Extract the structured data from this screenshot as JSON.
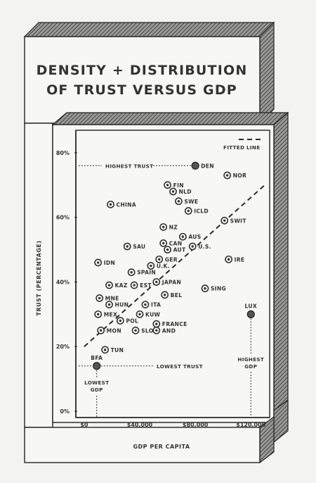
{
  "chart_data": {
    "type": "scatter",
    "title": "DENSITY + DISTRIBUTION\nOF TRUST VERSUS GDP",
    "xlabel": "GDP PER CAPITA",
    "ylabel": "TRUST (PERCENTAGE)",
    "xlim": [
      -4000,
      132000
    ],
    "ylim": [
      0,
      85
    ],
    "x_ticks": [
      0,
      40000,
      80000,
      120000
    ],
    "x_tick_labels": [
      "$0",
      "$40,000",
      "$80,000",
      "$120,000"
    ],
    "y_ticks": [
      0,
      20,
      40,
      60,
      80
    ],
    "y_tick_labels": [
      "0%",
      "20%",
      "40%",
      "60%",
      "80%"
    ],
    "grid": false,
    "legend": {
      "label": "FITTED LINE",
      "position": "top-right"
    },
    "fitted_line": {
      "x": [
        0,
        130000
      ],
      "y": [
        20,
        70
      ]
    },
    "points": [
      {
        "name": "DEN",
        "x": 80000,
        "y": 76,
        "style": "highlight"
      },
      {
        "name": "NOR",
        "x": 103000,
        "y": 73,
        "style": "normal"
      },
      {
        "name": "FIN",
        "x": 60000,
        "y": 70,
        "style": "normal"
      },
      {
        "name": "NLD",
        "x": 64000,
        "y": 68,
        "style": "normal"
      },
      {
        "name": "SWE",
        "x": 68000,
        "y": 65,
        "style": "normal"
      },
      {
        "name": "ICLD",
        "x": 75000,
        "y": 62,
        "style": "normal"
      },
      {
        "name": "CHINA",
        "x": 19000,
        "y": 64,
        "style": "normal"
      },
      {
        "name": "SWIT",
        "x": 101000,
        "y": 59,
        "style": "normal"
      },
      {
        "name": "NZ",
        "x": 57000,
        "y": 57,
        "style": "normal"
      },
      {
        "name": "AUS",
        "x": 71000,
        "y": 54,
        "style": "normal"
      },
      {
        "name": "CAN",
        "x": 57000,
        "y": 52,
        "style": "normal"
      },
      {
        "name": "U.S.",
        "x": 78000,
        "y": 51,
        "style": "normal"
      },
      {
        "name": "SAU",
        "x": 31000,
        "y": 51,
        "style": "normal"
      },
      {
        "name": "AUT",
        "x": 60000,
        "y": 50,
        "style": "normal"
      },
      {
        "name": "GER",
        "x": 54000,
        "y": 47,
        "style": "normal"
      },
      {
        "name": "IRE",
        "x": 104000,
        "y": 47,
        "style": "normal"
      },
      {
        "name": "IDN",
        "x": 10000,
        "y": 46,
        "style": "normal"
      },
      {
        "name": "U.K.",
        "x": 48000,
        "y": 45,
        "style": "normal"
      },
      {
        "name": "SPAIN",
        "x": 34000,
        "y": 43,
        "style": "normal"
      },
      {
        "name": "JAPAN",
        "x": 52000,
        "y": 40,
        "style": "normal"
      },
      {
        "name": "KAZ",
        "x": 18000,
        "y": 39,
        "style": "normal"
      },
      {
        "name": "EST",
        "x": 36000,
        "y": 39,
        "style": "normal"
      },
      {
        "name": "SING",
        "x": 87000,
        "y": 38,
        "style": "normal"
      },
      {
        "name": "BEL",
        "x": 58000,
        "y": 36,
        "style": "normal"
      },
      {
        "name": "MNE",
        "x": 11000,
        "y": 35,
        "style": "normal"
      },
      {
        "name": "HUN",
        "x": 18000,
        "y": 33,
        "style": "normal"
      },
      {
        "name": "ITA",
        "x": 44000,
        "y": 33,
        "style": "normal"
      },
      {
        "name": "MEX",
        "x": 10000,
        "y": 30,
        "style": "normal"
      },
      {
        "name": "KUW",
        "x": 40000,
        "y": 30,
        "style": "normal"
      },
      {
        "name": "POL",
        "x": 26000,
        "y": 28,
        "style": "normal"
      },
      {
        "name": "FRANCE",
        "x": 52000,
        "y": 27,
        "style": "normal"
      },
      {
        "name": "MON",
        "x": 12000,
        "y": 25,
        "style": "normal"
      },
      {
        "name": "SLO",
        "x": 37000,
        "y": 25,
        "style": "normal"
      },
      {
        "name": "AND",
        "x": 52000,
        "y": 25,
        "style": "normal"
      },
      {
        "name": "TUN",
        "x": 15000,
        "y": 19,
        "style": "normal"
      },
      {
        "name": "BFA",
        "x": 9000,
        "y": 14,
        "style": "highlight"
      },
      {
        "name": "LUX",
        "x": 120000,
        "y": 30,
        "style": "highlight"
      }
    ],
    "annotations": {
      "highest_trust": "HIGHEST TRUST",
      "lowest_trust": "LOWEST TRUST",
      "lowest_gdp": "LOWEST\nGDP",
      "highest_gdp": "HIGHEST\nGDP"
    }
  }
}
